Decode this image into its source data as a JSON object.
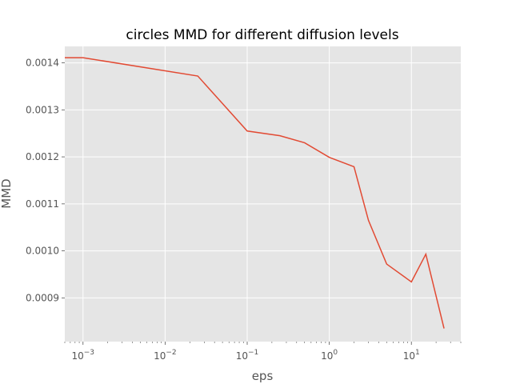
{
  "chart_data": {
    "type": "line",
    "title": "circles MMD for different diffusion levels",
    "xlabel": "eps",
    "ylabel": "MMD",
    "xscale": "log",
    "xlim": [
      0.0006,
      40
    ],
    "ylim": [
      0.000807,
      0.001435
    ],
    "grid": true,
    "background": "#e5e5e5",
    "grid_color": "#ffffff",
    "line_color": "#e24a33",
    "x_ticks": [
      {
        "base": "10",
        "exp": "−3",
        "value": 0.001
      },
      {
        "base": "10",
        "exp": "−2",
        "value": 0.01
      },
      {
        "base": "10",
        "exp": "−1",
        "value": 0.1
      },
      {
        "base": "10",
        "exp": "0",
        "value": 1
      },
      {
        "base": "10",
        "exp": "1",
        "value": 10
      }
    ],
    "y_ticks": [
      {
        "label": "0.0009",
        "value": 0.0009
      },
      {
        "label": "0.0010",
        "value": 0.001
      },
      {
        "label": "0.0011",
        "value": 0.0011
      },
      {
        "label": "0.0012",
        "value": 0.0012
      },
      {
        "label": "0.0013",
        "value": 0.0013
      },
      {
        "label": "0.0014",
        "value": 0.0014
      }
    ],
    "series": [
      {
        "x": [
          0.0001,
          0.001,
          0.025,
          0.1,
          0.25,
          0.5,
          1,
          2,
          3,
          5,
          10,
          15,
          25
        ],
        "y": [
          0.001411,
          0.001411,
          0.001372,
          0.001255,
          0.001245,
          0.00123,
          0.001199,
          0.001179,
          0.001065,
          0.000972,
          0.000934,
          0.000993,
          0.000835
        ]
      }
    ]
  }
}
